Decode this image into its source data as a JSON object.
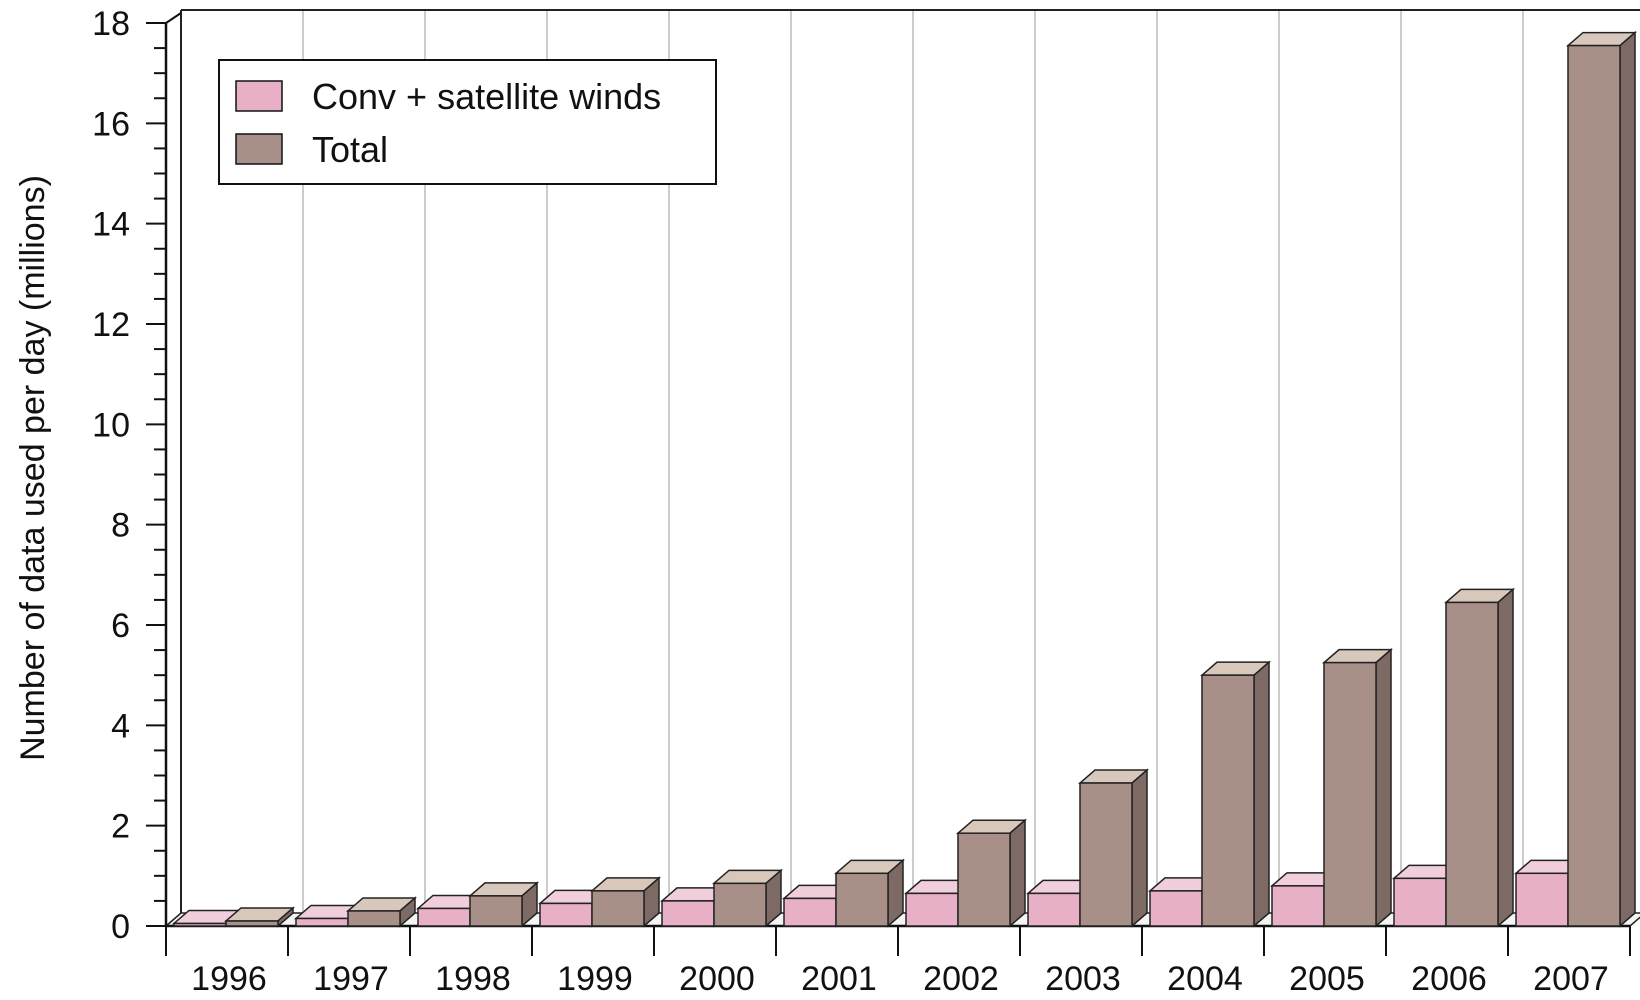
{
  "chart_data": {
    "type": "bar",
    "style": "3d",
    "title": "",
    "xlabel": "",
    "ylabel": "Number of data used per day (millions)",
    "ylim": [
      0,
      18
    ],
    "yticks": [
      "0",
      "2",
      "4",
      "6",
      "8",
      "10",
      "12",
      "14",
      "16",
      "18"
    ],
    "grid": "vertical lines between categories",
    "legend_position": "top-left",
    "categories": [
      "1996",
      "1997",
      "1998",
      "1999",
      "2000",
      "2001",
      "2002",
      "2003",
      "2004",
      "2005",
      "2006",
      "2007"
    ],
    "series": [
      {
        "name": "Conv + satellite winds",
        "color": "#e8b0c6",
        "values": [
          0.05,
          0.15,
          0.35,
          0.45,
          0.5,
          0.55,
          0.65,
          0.65,
          0.7,
          0.8,
          0.95,
          1.05
        ]
      },
      {
        "name": "Total",
        "color": "#a89088",
        "values": [
          0.1,
          0.3,
          0.6,
          0.7,
          0.85,
          1.05,
          1.85,
          2.85,
          5.0,
          5.25,
          6.45,
          17.55
        ]
      }
    ]
  }
}
